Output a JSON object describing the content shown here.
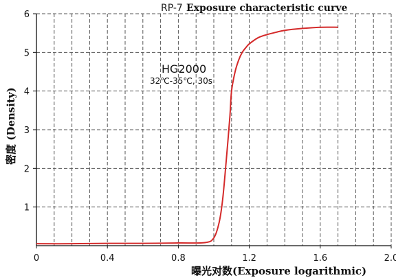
{
  "chart_data": {
    "type": "line",
    "title_prefix": "RP-7",
    "title": "Exposure characteristic curve",
    "xlabel": "曝光对数(Exposure logarithmic)",
    "ylabel": "密度 (Density)",
    "xlim": [
      0,
      2.0
    ],
    "ylim": [
      0,
      6
    ],
    "x_ticks": [
      "0",
      "0.4",
      "0.8",
      "1.2",
      "1.6",
      "2.0"
    ],
    "y_ticks": [
      "1",
      "2",
      "3",
      "4",
      "5",
      "6"
    ],
    "grid": true,
    "annotations": {
      "main": "HG2000",
      "sub": "32℃-35℃, 30s"
    },
    "series": [
      {
        "color": "#d42a2a",
        "x": [
          0.0,
          0.2,
          0.4,
          0.6,
          0.8,
          0.95,
          1.0,
          1.03,
          1.05,
          1.07,
          1.09,
          1.1,
          1.12,
          1.14,
          1.16,
          1.18,
          1.2,
          1.25,
          1.3,
          1.35,
          1.4,
          1.5,
          1.6,
          1.7
        ],
        "y": [
          0.05,
          0.05,
          0.06,
          0.06,
          0.07,
          0.08,
          0.2,
          0.6,
          1.2,
          2.2,
          3.3,
          4.0,
          4.5,
          4.8,
          5.0,
          5.12,
          5.22,
          5.38,
          5.46,
          5.52,
          5.57,
          5.62,
          5.65,
          5.65
        ]
      }
    ]
  }
}
